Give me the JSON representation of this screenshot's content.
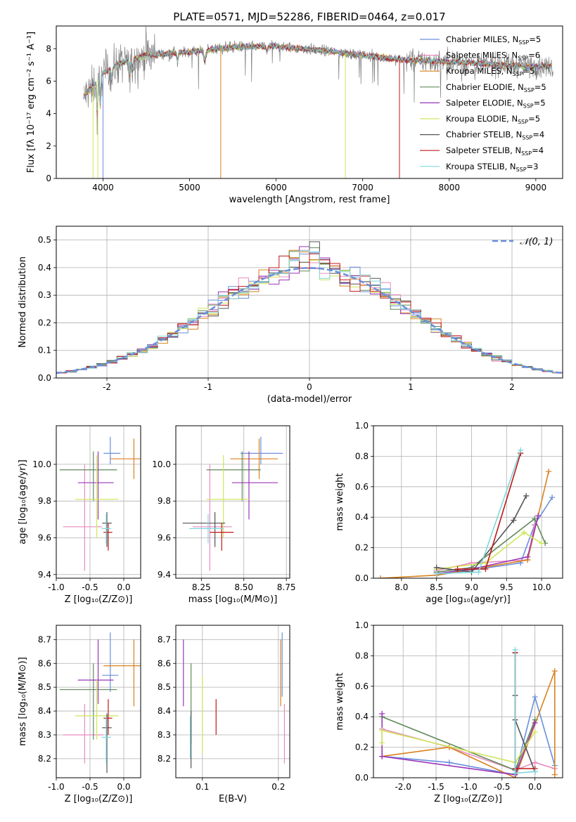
{
  "figure": {
    "title": "PLATE=0571, MJD=52286, FIBERID=0464, z=0.017"
  },
  "colors": {
    "c0": "#6a8fdc",
    "c1": "#e98bbf",
    "c2": "#d9821f",
    "c3": "#5f8a5a",
    "c4": "#9a35b8",
    "c5": "#cfe65c",
    "c6": "#555555",
    "c7": "#c01818",
    "c8": "#7fd8dd",
    "data": "#808080",
    "grid": "#b0b0b0",
    "normal": "#6a8fdc"
  },
  "chart_data": [
    {
      "id": "spectrum",
      "type": "line",
      "title": "PLATE=0571, MJD=52286, FIBERID=0464, z=0.017",
      "xlabel": "wavelength [Angstrom, rest frame]",
      "ylabel": "Flux [fλ 10⁻¹⁷ erg cm⁻² s⁻¹ A⁻¹]",
      "xlim": [
        3460,
        9310
      ],
      "ylim": [
        0,
        9.4
      ],
      "xticks": [
        4000,
        5000,
        6000,
        7000,
        8000,
        9000
      ],
      "yticks": [
        0,
        2,
        4,
        6,
        8
      ],
      "grid": false,
      "legend_position": "top-right",
      "continuum": [
        [
          3770,
          5.0
        ],
        [
          3900,
          5.8
        ],
        [
          4000,
          6.5
        ],
        [
          4200,
          7.1
        ],
        [
          4500,
          7.6
        ],
        [
          5000,
          7.8
        ],
        [
          5500,
          8.1
        ],
        [
          6000,
          8.15
        ],
        [
          6500,
          7.9
        ],
        [
          7000,
          7.6
        ],
        [
          7500,
          7.3
        ],
        [
          8000,
          7.2
        ],
        [
          8500,
          7.05
        ],
        [
          8900,
          6.9
        ]
      ],
      "data_range": [
        3780,
        9200
      ],
      "series": [
        {
          "name": "Chabrier MILES, N",
          "sub": "SSP",
          "suffix": "=5",
          "color_key": "c0"
        },
        {
          "name": "Salpeter MILES, N",
          "sub": "SSP",
          "suffix": "=6",
          "color_key": "c1"
        },
        {
          "name": "Kroupa MILES, N",
          "sub": "SSP",
          "suffix": "=5",
          "color_key": "c2"
        },
        {
          "name": "Chabrier ELODIE, N",
          "sub": "SSP",
          "suffix": "=5",
          "color_key": "c3"
        },
        {
          "name": "Salpeter ELODIE, N",
          "sub": "SSP",
          "suffix": "=5",
          "color_key": "c4"
        },
        {
          "name": "Kroupa ELODIE, N",
          "sub": "SSP",
          "suffix": "=5",
          "color_key": "c5"
        },
        {
          "name": "Chabrier STELIB, N",
          "sub": "SSP",
          "suffix": "=4",
          "color_key": "c6"
        },
        {
          "name": "Salpeter STELIB, N",
          "sub": "SSP",
          "suffix": "=4",
          "color_key": "c7"
        },
        {
          "name": "Kroupa STELIB, N",
          "sub": "SSP",
          "suffix": "=3",
          "color_key": "c8"
        }
      ]
    },
    {
      "id": "residuals",
      "type": "line",
      "xlabel": "(data-model)/error",
      "ylabel": "Normed distribution",
      "xlim": [
        -2.5,
        2.5
      ],
      "ylim": [
        0,
        0.55
      ],
      "xticks": [
        -2,
        -1,
        0,
        1,
        2
      ],
      "yticks": [
        0.0,
        0.1,
        0.2,
        0.3,
        0.4,
        0.5
      ],
      "grid": true,
      "legend_position": "top-right",
      "legend_label": "𝒩(0, 1)",
      "bin_width": 0.1
    },
    {
      "id": "z_age",
      "type": "scatter",
      "xlabel": "Z [log₁₀(Z/Z⊙)]",
      "ylabel": "age  [log₁₀(age/yr)]",
      "xlim": [
        -1.0,
        0.25
      ],
      "ylim": [
        9.38,
        10.21
      ],
      "xticks": [
        -1.0,
        -0.5,
        0.0
      ],
      "yticks": [
        9.4,
        9.6,
        9.8,
        10.0
      ],
      "grid": true,
      "points": [
        {
          "c": "c0",
          "x": -0.2,
          "xe": [
            -0.3,
            -0.05
          ],
          "y": 10.06,
          "ye": [
            10.0,
            10.15
          ]
        },
        {
          "c": "c1",
          "x": -0.58,
          "xe": [
            -0.9,
            -0.32
          ],
          "y": 9.66,
          "ye": [
            9.42,
            10.0
          ]
        },
        {
          "c": "c2",
          "x": 0.15,
          "xe": [
            -0.2,
            0.26
          ],
          "y": 10.03,
          "ye": [
            9.92,
            10.14
          ]
        },
        {
          "c": "c3",
          "x": -0.45,
          "xe": [
            -0.95,
            -0.1
          ],
          "y": 9.97,
          "ye": [
            9.8,
            10.07
          ]
        },
        {
          "c": "c4",
          "x": -0.38,
          "xe": [
            -0.68,
            -0.15
          ],
          "y": 9.9,
          "ye": [
            9.7,
            10.07
          ]
        },
        {
          "c": "c5",
          "x": -0.4,
          "xe": [
            -0.72,
            -0.08
          ],
          "y": 9.81,
          "ye": [
            9.6,
            10.05
          ]
        },
        {
          "c": "c6",
          "x": -0.25,
          "xe": [
            -0.32,
            -0.18
          ],
          "y": 9.68,
          "ye": [
            9.55,
            9.74
          ]
        },
        {
          "c": "c7",
          "x": -0.23,
          "xe": [
            -0.3,
            -0.17
          ],
          "y": 9.63,
          "ye": [
            9.53,
            9.68
          ]
        },
        {
          "c": "c8",
          "x": -0.26,
          "xe": [
            -0.33,
            -0.19
          ],
          "y": 9.65,
          "ye": [
            9.57,
            9.73
          ]
        }
      ]
    },
    {
      "id": "mass_age",
      "type": "scatter",
      "xlabel": "mass [log₁₀(M/M⊙)]",
      "ylabel": "",
      "xlim": [
        8.1,
        8.77
      ],
      "ylim": [
        9.38,
        10.21
      ],
      "xticks": [
        8.25,
        8.5,
        8.75
      ],
      "yticks": [
        9.4,
        9.6,
        9.8,
        10.0
      ],
      "grid": true,
      "points": [
        {
          "c": "c0",
          "x": 8.6,
          "xe": [
            8.48,
            8.73
          ],
          "y": 10.06,
          "ye": [
            10.0,
            10.15
          ]
        },
        {
          "c": "c1",
          "x": 8.3,
          "xe": [
            8.2,
            8.43
          ],
          "y": 9.66,
          "ye": [
            9.42,
            10.0
          ]
        },
        {
          "c": "c2",
          "x": 8.59,
          "xe": [
            8.42,
            8.7
          ],
          "y": 10.03,
          "ye": [
            9.92,
            10.14
          ]
        },
        {
          "c": "c3",
          "x": 8.49,
          "xe": [
            8.28,
            8.6
          ],
          "y": 9.97,
          "ye": [
            9.8,
            10.07
          ]
        },
        {
          "c": "c4",
          "x": 8.53,
          "xe": [
            8.43,
            8.7
          ],
          "y": 9.9,
          "ye": [
            9.7,
            10.07
          ]
        },
        {
          "c": "c5",
          "x": 8.38,
          "xe": [
            8.28,
            8.53
          ],
          "y": 9.81,
          "ye": [
            9.6,
            10.05
          ]
        },
        {
          "c": "c6",
          "x": 8.33,
          "xe": [
            8.14,
            8.39
          ],
          "y": 9.68,
          "ye": [
            9.55,
            9.74
          ]
        },
        {
          "c": "c7",
          "x": 8.37,
          "xe": [
            8.3,
            8.44
          ],
          "y": 9.63,
          "ye": [
            9.53,
            9.68
          ]
        },
        {
          "c": "c8",
          "x": 8.29,
          "xe": [
            8.18,
            8.38
          ],
          "y": 9.65,
          "ye": [
            9.57,
            9.73
          ]
        }
      ]
    },
    {
      "id": "age_weight",
      "type": "line",
      "xlabel": "age  [log₁₀(age/yr)]",
      "ylabel": "mass weight",
      "xlim": [
        7.6,
        10.3
      ],
      "ylim": [
        0,
        1
      ],
      "xticks": [
        8.0,
        8.5,
        9.0,
        9.5,
        10.0
      ],
      "yticks": [
        0.0,
        0.2,
        0.4,
        0.6,
        0.8,
        1.0
      ],
      "grid": true,
      "series": [
        {
          "c": "c0",
          "x": [
            8.5,
            9.7,
            9.9,
            10.15
          ],
          "y": [
            0.02,
            0.1,
            0.35,
            0.53
          ]
        },
        {
          "c": "c1",
          "x": [
            8.5,
            9.0,
            9.8,
            9.9
          ],
          "y": [
            0.05,
            0.1,
            0.12,
            0.35
          ]
        },
        {
          "c": "c2",
          "x": [
            7.7,
            8.5,
            9.8,
            10.1
          ],
          "y": [
            0.0,
            0.02,
            0.12,
            0.7
          ]
        },
        {
          "c": "c3",
          "x": [
            8.5,
            9.0,
            9.9,
            10.05
          ],
          "y": [
            0.04,
            0.07,
            0.39,
            0.23
          ]
        },
        {
          "c": "c4",
          "x": [
            8.5,
            9.0,
            9.8,
            9.95
          ],
          "y": [
            0.03,
            0.06,
            0.14,
            0.41
          ]
        },
        {
          "c": "c5",
          "x": [
            8.5,
            9.2,
            9.75,
            10.0
          ],
          "y": [
            0.06,
            0.1,
            0.3,
            0.23
          ]
        },
        {
          "c": "c6",
          "x": [
            8.5,
            9.0,
            9.6,
            9.78
          ],
          "y": [
            0.07,
            0.04,
            0.38,
            0.54
          ]
        },
        {
          "c": "c7",
          "x": [
            8.8,
            9.2,
            9.7
          ],
          "y": [
            0.06,
            0.06,
            0.82
          ]
        },
        {
          "c": "c8",
          "x": [
            8.5,
            9.1,
            9.7
          ],
          "y": [
            0.03,
            0.04,
            0.84
          ]
        }
      ]
    },
    {
      "id": "z_mass",
      "type": "scatter",
      "xlabel": "Z [log₁₀(Z/Z⊙)]",
      "ylabel": "mass [log₁₀(M/M⊙)]",
      "xlim": [
        -1.0,
        0.25
      ],
      "ylim": [
        8.12,
        8.76
      ],
      "xticks": [
        -1.0,
        -0.5,
        0.0
      ],
      "yticks": [
        8.2,
        8.3,
        8.4,
        8.5,
        8.6,
        8.7
      ],
      "grid": true,
      "points": [
        {
          "c": "c0",
          "x": -0.2,
          "xe": [
            -0.32,
            -0.08
          ],
          "y": 8.55,
          "ye": [
            8.48,
            8.73
          ]
        },
        {
          "c": "c1",
          "x": -0.58,
          "xe": [
            -0.9,
            -0.3
          ],
          "y": 8.3,
          "ye": [
            8.18,
            8.43
          ]
        },
        {
          "c": "c2",
          "x": 0.15,
          "xe": [
            -0.3,
            0.26
          ],
          "y": 8.59,
          "ye": [
            8.42,
            8.7
          ]
        },
        {
          "c": "c3",
          "x": -0.45,
          "xe": [
            -0.95,
            -0.1
          ],
          "y": 8.49,
          "ye": [
            8.28,
            8.6
          ]
        },
        {
          "c": "c4",
          "x": -0.38,
          "xe": [
            -0.68,
            -0.15
          ],
          "y": 8.53,
          "ye": [
            8.43,
            8.7
          ]
        },
        {
          "c": "c5",
          "x": -0.4,
          "xe": [
            -0.72,
            -0.08
          ],
          "y": 8.38,
          "ye": [
            8.28,
            8.53
          ]
        },
        {
          "c": "c6",
          "x": -0.25,
          "xe": [
            -0.32,
            -0.18
          ],
          "y": 8.33,
          "ye": [
            8.14,
            8.39
          ]
        },
        {
          "c": "c7",
          "x": -0.23,
          "xe": [
            -0.3,
            -0.17
          ],
          "y": 8.37,
          "ye": [
            8.3,
            8.45
          ]
        },
        {
          "c": "c8",
          "x": -0.26,
          "xe": [
            -0.33,
            -0.19
          ],
          "y": 8.29,
          "ye": [
            8.18,
            8.38
          ]
        }
      ]
    },
    {
      "id": "ebv_mass",
      "type": "scatter",
      "xlabel": "E(B-V)",
      "ylabel": "",
      "xlim": [
        0.065,
        0.215
      ],
      "ylim": [
        8.12,
        8.76
      ],
      "xticks": [
        0.1,
        0.2
      ],
      "yticks": [
        8.2,
        8.3,
        8.4,
        8.5,
        8.6,
        8.7
      ],
      "grid": true,
      "points": [
        {
          "c": "c0",
          "x": 0.205,
          "y": 8.6,
          "ye": [
            8.46,
            8.73
          ]
        },
        {
          "c": "c1",
          "x": 0.208,
          "y": 8.3,
          "ye": [
            8.18,
            8.43
          ]
        },
        {
          "c": "c2",
          "x": 0.203,
          "y": 8.59,
          "ye": [
            8.42,
            8.7
          ]
        },
        {
          "c": "c3",
          "x": 0.085,
          "y": 8.49,
          "ye": [
            8.26,
            8.6
          ]
        },
        {
          "c": "c4",
          "x": 0.075,
          "y": 8.53,
          "ye": [
            8.42,
            8.7
          ]
        },
        {
          "c": "c5",
          "x": 0.1,
          "y": 8.38,
          "ye": [
            8.22,
            8.55
          ]
        },
        {
          "c": "c6",
          "x": 0.085,
          "y": 8.33,
          "ye": [
            8.16,
            8.4
          ]
        },
        {
          "c": "c7",
          "x": 0.118,
          "y": 8.37,
          "ye": [
            8.3,
            8.45
          ]
        },
        {
          "c": "c8",
          "x": 0.084,
          "y": 8.29,
          "ye": [
            8.2,
            8.38
          ]
        }
      ]
    },
    {
      "id": "z_weight",
      "type": "line",
      "xlabel": "Z [log₁₀(Z/Z⊙)]",
      "ylabel": "mass weight",
      "xlim": [
        -2.45,
        0.42
      ],
      "ylim": [
        0,
        1
      ],
      "xticks": [
        -2.0,
        -1.5,
        -1.0,
        -0.5,
        0.0
      ],
      "yticks": [
        0.0,
        0.2,
        0.4,
        0.6,
        0.8,
        1.0
      ],
      "grid": true,
      "series": [
        {
          "c": "c0",
          "x": [
            -2.32,
            -1.3,
            -0.3,
            0.0,
            0.3
          ],
          "y": [
            0.14,
            0.1,
            0.02,
            0.53,
            0.08
          ]
        },
        {
          "c": "c1",
          "x": [
            -2.32,
            -1.3,
            -0.3,
            0.0,
            0.3
          ],
          "y": [
            0.32,
            0.2,
            0.05,
            0.1,
            0.06
          ]
        },
        {
          "c": "c2",
          "x": [
            -2.32,
            -1.3,
            -0.3,
            0.3,
            0.3
          ],
          "y": [
            0.14,
            0.2,
            0.0,
            0.7,
            0.02
          ]
        },
        {
          "c": "c3",
          "x": [
            -2.32,
            -0.3,
            0.0
          ],
          "y": [
            0.4,
            0.05,
            0.38
          ]
        },
        {
          "c": "c4",
          "x": [
            -2.32,
            -2.32,
            -0.3,
            0.0
          ],
          "y": [
            0.42,
            0.14,
            0.02,
            0.36
          ]
        },
        {
          "c": "c5",
          "x": [
            -2.32,
            -2.32,
            -0.3,
            0.0
          ],
          "y": [
            0.23,
            0.31,
            0.1,
            0.3
          ]
        },
        {
          "c": "c6",
          "x": [
            -0.3,
            -0.3,
            -0.3,
            0.0
          ],
          "y": [
            0.82,
            0.54,
            0.38,
            0.04
          ]
        },
        {
          "c": "c7",
          "x": [
            -0.3,
            -0.3,
            0.0
          ],
          "y": [
            0.82,
            0.06,
            0.06
          ]
        },
        {
          "c": "c8",
          "x": [
            -0.3,
            -0.3,
            0.0
          ],
          "y": [
            0.84,
            0.03,
            0.04
          ]
        }
      ]
    }
  ]
}
